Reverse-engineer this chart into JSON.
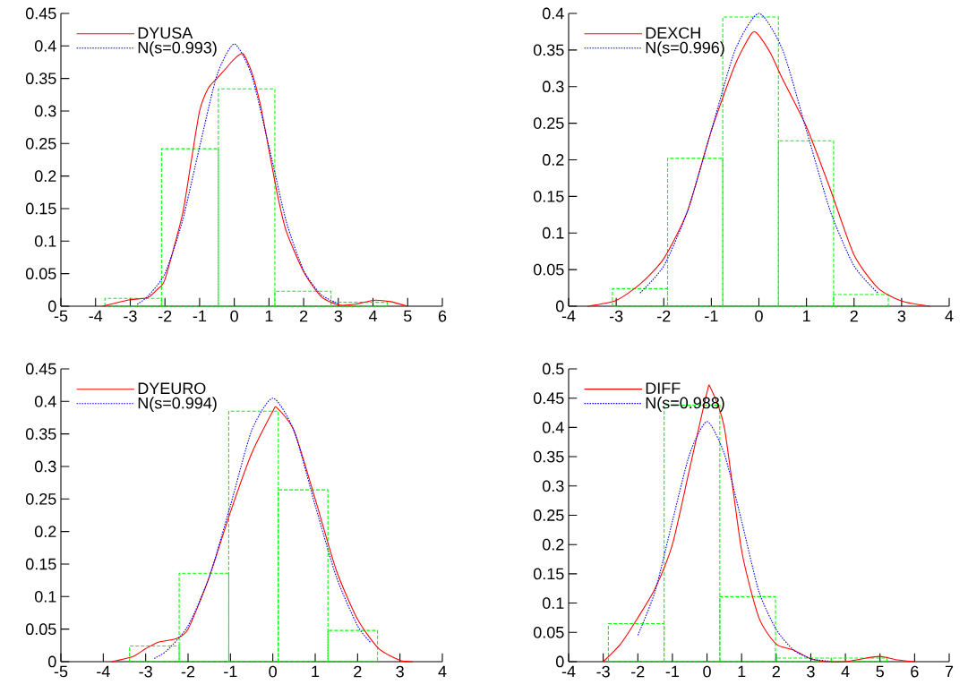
{
  "chart_data": [
    {
      "type": "histogram",
      "bins": [
        -3.73,
        -2.1,
        -0.46,
        1.17,
        2.79,
        4.41
      ],
      "values": [
        0.012,
        0.242,
        0.334,
        0.023,
        0.006
      ],
      "color": "#00ff00",
      "line_style": "dashed",
      "xlim": [
        -5,
        6
      ],
      "xticks": [
        -5,
        -4,
        -3,
        -2,
        -1,
        0,
        1,
        2,
        3,
        4,
        5,
        6
      ],
      "ylim": [
        0,
        0.45
      ],
      "yticks": [
        0,
        0.05,
        0.1,
        0.15,
        0.2,
        0.25,
        0.3,
        0.35,
        0.4,
        0.45
      ],
      "legend": "top left",
      "series": [
        {
          "type": "line",
          "name": "DYUSA",
          "color": "#ff0000",
          "line_style": "solid",
          "x": [
            -3.8,
            -3,
            -2.5,
            -2.2,
            -2,
            -1.5,
            -1.25,
            -1,
            -0.75,
            -0.5,
            -0.25,
            0,
            0.25,
            0.5,
            0.75,
            1,
            1.25,
            1.5,
            2,
            2.5,
            3,
            3.5,
            4,
            4.5,
            5
          ],
          "values": [
            0,
            0.01,
            0.013,
            0.027,
            0.041,
            0.14,
            0.22,
            0.3,
            0.335,
            0.35,
            0.365,
            0.38,
            0.388,
            0.36,
            0.31,
            0.24,
            0.17,
            0.115,
            0.053,
            0.015,
            0.002,
            0.003,
            0.009,
            0.007,
            0
          ]
        },
        {
          "type": "line",
          "name": "N(s=0.993)",
          "color": "#0000ff",
          "line_style": "dotted",
          "x": [
            -2.8,
            -2.5,
            -2,
            -1.5,
            -1,
            -0.5,
            0,
            0.5,
            1,
            1.5,
            2,
            2.5,
            3
          ],
          "values": [
            0.003,
            0.015,
            0.05,
            0.13,
            0.245,
            0.355,
            0.403,
            0.355,
            0.245,
            0.13,
            0.055,
            0.018,
            0.004
          ]
        }
      ]
    },
    {
      "type": "histogram",
      "bins": [
        -3.08,
        -1.92,
        -0.76,
        0.41,
        1.57,
        2.72
      ],
      "values": [
        0.024,
        0.202,
        0.395,
        0.226,
        0.016
      ],
      "color": "#00ff00",
      "line_style": "dashed",
      "xlim": [
        -4,
        4
      ],
      "xticks": [
        -4,
        -3,
        -2,
        -1,
        0,
        1,
        2,
        3,
        4
      ],
      "ylim": [
        0,
        0.4
      ],
      "yticks": [
        0,
        0.05,
        0.1,
        0.15,
        0.2,
        0.25,
        0.3,
        0.35,
        0.4
      ],
      "legend": "top left",
      "series": [
        {
          "type": "line",
          "name": "DEXCH",
          "color": "#ff0000",
          "line_style": "solid",
          "x": [
            -3.6,
            -3,
            -2.5,
            -2,
            -1.5,
            -1,
            -0.5,
            -0.15,
            0,
            0.25,
            0.5,
            1,
            1.5,
            2,
            2.5,
            3,
            3.6
          ],
          "values": [
            0,
            0.008,
            0.03,
            0.065,
            0.13,
            0.24,
            0.33,
            0.373,
            0.37,
            0.345,
            0.31,
            0.245,
            0.16,
            0.07,
            0.025,
            0.007,
            0
          ]
        },
        {
          "type": "line",
          "name": "N(s=0.996)",
          "color": "#0000ff",
          "line_style": "dotted",
          "x": [
            -2.5,
            -2,
            -1.5,
            -1,
            -0.5,
            0,
            0.5,
            1,
            1.5,
            2,
            2.5
          ],
          "values": [
            0.018,
            0.055,
            0.13,
            0.24,
            0.35,
            0.4,
            0.35,
            0.24,
            0.13,
            0.055,
            0.018
          ]
        }
      ]
    },
    {
      "type": "histogram",
      "bins": [
        -3.38,
        -2.21,
        -1.04,
        0.13,
        1.3,
        2.47
      ],
      "values": [
        0.024,
        0.136,
        0.385,
        0.264,
        0.048
      ],
      "color": "#00ff00",
      "line_style": "dashed",
      "xlim": [
        -5,
        4
      ],
      "xticks": [
        -5,
        -4,
        -3,
        -2,
        -1,
        0,
        1,
        2,
        3,
        4
      ],
      "ylim": [
        0,
        0.45
      ],
      "yticks": [
        0,
        0.05,
        0.1,
        0.15,
        0.2,
        0.25,
        0.3,
        0.35,
        0.4,
        0.45
      ],
      "legend": "top left",
      "series": [
        {
          "type": "line",
          "name": "DYEURO",
          "color": "#ff0000",
          "line_style": "solid",
          "x": [
            -3.8,
            -3.3,
            -3,
            -2.7,
            -2.3,
            -2,
            -1.5,
            -1,
            -0.5,
            0,
            0.1,
            0.5,
            1,
            1.5,
            2,
            2.5,
            3,
            3.3
          ],
          "values": [
            0,
            0.008,
            0.02,
            0.03,
            0.035,
            0.05,
            0.13,
            0.23,
            0.32,
            0.385,
            0.39,
            0.355,
            0.25,
            0.14,
            0.065,
            0.02,
            0.002,
            0
          ]
        },
        {
          "type": "line",
          "name": "N(s=0.994)",
          "color": "#0000ff",
          "line_style": "dotted",
          "x": [
            -2.8,
            -2.5,
            -2,
            -1.5,
            -1,
            -0.5,
            0,
            0.5,
            1,
            1.5,
            2,
            2.3
          ],
          "values": [
            0.005,
            0.017,
            0.055,
            0.13,
            0.24,
            0.355,
            0.405,
            0.355,
            0.24,
            0.13,
            0.055,
            0.03
          ]
        }
      ]
    },
    {
      "type": "histogram",
      "bins": [
        -2.85,
        -1.24,
        0.37,
        1.98,
        3.59,
        5.2
      ],
      "values": [
        0.065,
        0.438,
        0.111,
        0.006,
        0.006
      ],
      "color": "#00ff00",
      "line_style": "dashed",
      "xlim": [
        -4,
        7
      ],
      "xticks": [
        -4,
        -3,
        -2,
        -1,
        0,
        1,
        2,
        3,
        4,
        5,
        6,
        7
      ],
      "ylim": [
        0,
        0.5
      ],
      "yticks": [
        0,
        0.05,
        0.1,
        0.15,
        0.2,
        0.25,
        0.3,
        0.35,
        0.4,
        0.45,
        0.5
      ],
      "legend": "top left",
      "series": [
        {
          "type": "line",
          "name": "DIFF",
          "color": "#ff0000",
          "line_style": "solid",
          "x": [
            -3,
            -2.5,
            -2,
            -1.5,
            -1,
            -0.5,
            0,
            0.1,
            0.5,
            1,
            1.5,
            2,
            2.5,
            3,
            3.5,
            4,
            4.5,
            5,
            5.5,
            6
          ],
          "values": [
            0,
            0.03,
            0.075,
            0.125,
            0.2,
            0.33,
            0.46,
            0.468,
            0.4,
            0.19,
            0.075,
            0.03,
            0.02,
            0.005,
            0,
            0,
            0.005,
            0.009,
            0.003,
            0
          ]
        },
        {
          "type": "line",
          "name": "N(s=0.988)",
          "color": "#0000ff",
          "line_style": "dotted",
          "x": [
            -2,
            -1.5,
            -1,
            -0.5,
            0,
            0.5,
            1,
            1.5,
            2,
            2.5,
            3,
            3.5
          ],
          "values": [
            0.045,
            0.12,
            0.24,
            0.355,
            0.41,
            0.355,
            0.24,
            0.12,
            0.055,
            0.02,
            0.005,
            0.001
          ]
        }
      ]
    }
  ]
}
